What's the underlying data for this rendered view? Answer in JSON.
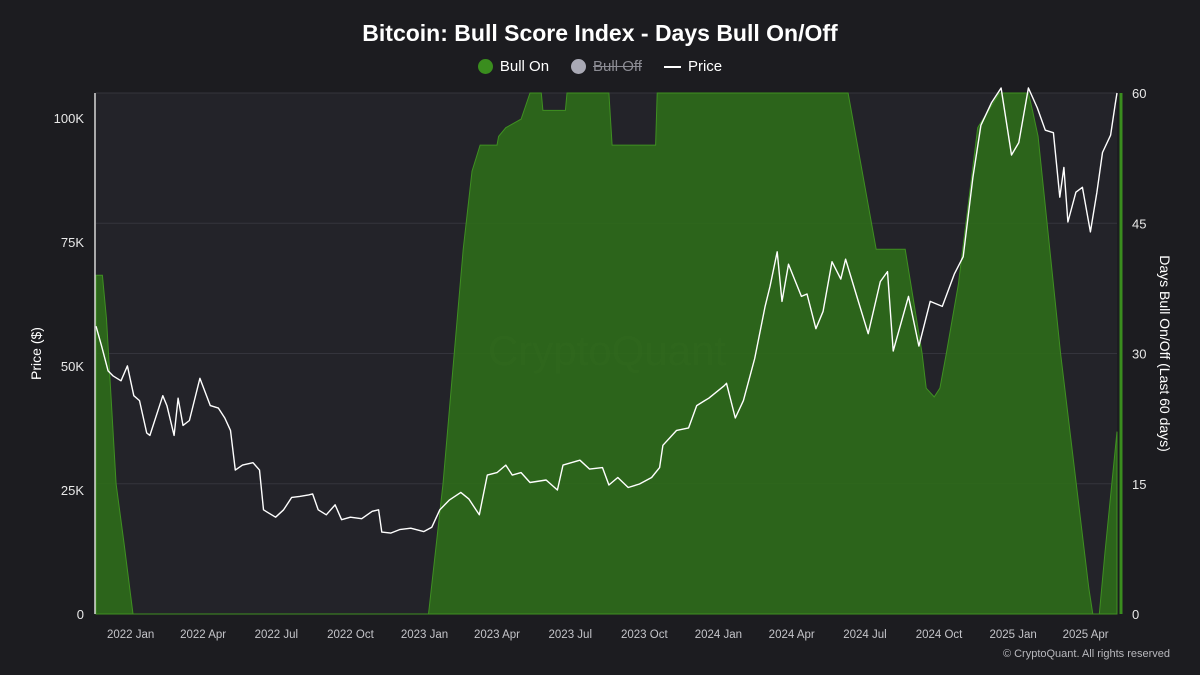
{
  "chart_data": {
    "type": "area+line",
    "title": "Bitcoin: Bull Score Index - Days Bull On/Off",
    "legend": [
      {
        "name": "Bull On",
        "color": "#3a8d1e",
        "active": true
      },
      {
        "name": "Bull Off",
        "color": "#a9a9b5",
        "active": false
      },
      {
        "name": "Price",
        "color": "#ffffff",
        "active": true
      }
    ],
    "y_left": {
      "label": "Price ($)",
      "ticks": [
        0,
        25000,
        50000,
        75000,
        100000
      ],
      "tick_labels": [
        "0",
        "25K",
        "50K",
        "75K",
        "100K"
      ],
      "range": [
        0,
        105000
      ]
    },
    "y_right": {
      "label": "Days Bull On/Off (Last 60 days)",
      "ticks": [
        0,
        15,
        30,
        45,
        60
      ],
      "tick_labels": [
        "0",
        "15",
        "30",
        "45",
        "60"
      ],
      "range": [
        0,
        60
      ]
    },
    "x_axis": {
      "range": [
        "2021-11-19",
        "2025-05-10"
      ],
      "ticks": [
        "2022-01-01",
        "2022-04-01",
        "2022-07-01",
        "2022-10-01",
        "2023-01-01",
        "2023-04-01",
        "2023-07-01",
        "2023-10-01",
        "2024-01-01",
        "2024-04-01",
        "2024-07-01",
        "2024-10-01",
        "2025-01-01",
        "2025-04-01"
      ],
      "tick_labels": [
        "2022 Jan",
        "2022 Apr",
        "2022 Jul",
        "2022 Oct",
        "2023 Jan",
        "2023 Apr",
        "2023 Jul",
        "2023 Oct",
        "2024 Jan",
        "2024 Apr",
        "2024 Jul",
        "2024 Oct",
        "2025 Jan",
        "2025 Apr"
      ]
    },
    "series": [
      {
        "name": "Bull On",
        "axis": "right",
        "type": "area",
        "points": [
          [
            "2021-11-19",
            39
          ],
          [
            "2021-11-27",
            39
          ],
          [
            "2021-12-02",
            34
          ],
          [
            "2021-12-14",
            15
          ],
          [
            "2021-12-24",
            8
          ],
          [
            "2022-01-04",
            0
          ],
          [
            "2023-01-06",
            0
          ],
          [
            "2023-01-24",
            15
          ],
          [
            "2023-02-18",
            42
          ],
          [
            "2023-03-01",
            51
          ],
          [
            "2023-03-11",
            54
          ],
          [
            "2023-04-01",
            54
          ],
          [
            "2023-04-03",
            55
          ],
          [
            "2023-04-12",
            56
          ],
          [
            "2023-05-01",
            57
          ],
          [
            "2023-05-12",
            60
          ],
          [
            "2023-05-26",
            60
          ],
          [
            "2023-05-28",
            58
          ],
          [
            "2023-06-25",
            58
          ],
          [
            "2023-06-27",
            60
          ],
          [
            "2023-08-18",
            60
          ],
          [
            "2023-08-22",
            54
          ],
          [
            "2023-10-15",
            54
          ],
          [
            "2023-10-17",
            60
          ],
          [
            "2024-06-10",
            60
          ],
          [
            "2024-07-15",
            42
          ],
          [
            "2024-07-18",
            42
          ],
          [
            "2024-08-20",
            42
          ],
          [
            "2024-09-10",
            30
          ],
          [
            "2024-09-15",
            26
          ],
          [
            "2024-09-25",
            25
          ],
          [
            "2024-10-02",
            26
          ],
          [
            "2024-10-10",
            30
          ],
          [
            "2024-10-25",
            38
          ],
          [
            "2024-11-18",
            56
          ],
          [
            "2024-12-15",
            60
          ],
          [
            "2025-01-20",
            60
          ],
          [
            "2025-01-25",
            58
          ],
          [
            "2025-02-01",
            55
          ],
          [
            "2025-03-01",
            30
          ],
          [
            "2025-04-05",
            3
          ],
          [
            "2025-04-10",
            0
          ],
          [
            "2025-04-18",
            0
          ],
          [
            "2025-04-25",
            7
          ],
          [
            "2025-05-10",
            21
          ]
        ]
      },
      {
        "name": "Price",
        "axis": "left",
        "type": "line",
        "points": [
          [
            "2021-11-19",
            58000
          ],
          [
            "2021-11-26",
            54000
          ],
          [
            "2021-12-04",
            49000
          ],
          [
            "2021-12-10",
            48000
          ],
          [
            "2021-12-20",
            47000
          ],
          [
            "2021-12-28",
            50000
          ],
          [
            "2022-01-05",
            44000
          ],
          [
            "2022-01-12",
            43000
          ],
          [
            "2022-01-21",
            36500
          ],
          [
            "2022-01-25",
            36000
          ],
          [
            "2022-02-10",
            44000
          ],
          [
            "2022-02-15",
            42000
          ],
          [
            "2022-02-24",
            36000
          ],
          [
            "2022-03-01",
            43500
          ],
          [
            "2022-03-07",
            38000
          ],
          [
            "2022-03-15",
            39000
          ],
          [
            "2022-03-28",
            47500
          ],
          [
            "2022-04-10",
            42000
          ],
          [
            "2022-04-20",
            41500
          ],
          [
            "2022-04-28",
            39500
          ],
          [
            "2022-05-05",
            37000
          ],
          [
            "2022-05-11",
            29000
          ],
          [
            "2022-05-20",
            30000
          ],
          [
            "2022-06-02",
            30500
          ],
          [
            "2022-06-10",
            29000
          ],
          [
            "2022-06-15",
            21000
          ],
          [
            "2022-06-20",
            20500
          ],
          [
            "2022-06-30",
            19500
          ],
          [
            "2022-07-10",
            21000
          ],
          [
            "2022-07-20",
            23500
          ],
          [
            "2022-07-30",
            23700
          ],
          [
            "2022-08-10",
            24000
          ],
          [
            "2022-08-15",
            24200
          ],
          [
            "2022-08-22",
            21000
          ],
          [
            "2022-09-01",
            20000
          ],
          [
            "2022-09-12",
            22000
          ],
          [
            "2022-09-20",
            19000
          ],
          [
            "2022-10-01",
            19500
          ],
          [
            "2022-10-15",
            19200
          ],
          [
            "2022-10-28",
            20700
          ],
          [
            "2022-11-05",
            21000
          ],
          [
            "2022-11-09",
            16500
          ],
          [
            "2022-11-20",
            16300
          ],
          [
            "2022-12-01",
            17000
          ],
          [
            "2022-12-15",
            17300
          ],
          [
            "2022-12-31",
            16600
          ],
          [
            "2023-01-10",
            17500
          ],
          [
            "2023-01-20",
            21000
          ],
          [
            "2023-02-01",
            23000
          ],
          [
            "2023-02-15",
            24500
          ],
          [
            "2023-02-25",
            23200
          ],
          [
            "2023-03-10",
            20000
          ],
          [
            "2023-03-20",
            28000
          ],
          [
            "2023-04-01",
            28500
          ],
          [
            "2023-04-12",
            30000
          ],
          [
            "2023-04-20",
            28000
          ],
          [
            "2023-05-01",
            28500
          ],
          [
            "2023-05-12",
            26500
          ],
          [
            "2023-06-01",
            27000
          ],
          [
            "2023-06-15",
            25000
          ],
          [
            "2023-06-22",
            30000
          ],
          [
            "2023-07-13",
            31000
          ],
          [
            "2023-07-25",
            29200
          ],
          [
            "2023-08-10",
            29500
          ],
          [
            "2023-08-18",
            26000
          ],
          [
            "2023-08-29",
            27500
          ],
          [
            "2023-09-11",
            25500
          ],
          [
            "2023-09-25",
            26200
          ],
          [
            "2023-10-10",
            27500
          ],
          [
            "2023-10-20",
            29500
          ],
          [
            "2023-10-24",
            34000
          ],
          [
            "2023-11-10",
            37000
          ],
          [
            "2023-11-25",
            37500
          ],
          [
            "2023-12-05",
            42000
          ],
          [
            "2023-12-15",
            43000
          ],
          [
            "2023-12-20",
            43500
          ],
          [
            "2024-01-08",
            46000
          ],
          [
            "2024-01-11",
            46500
          ],
          [
            "2024-01-22",
            39500
          ],
          [
            "2024-02-01",
            43000
          ],
          [
            "2024-02-15",
            51500
          ],
          [
            "2024-02-28",
            62000
          ],
          [
            "2024-03-05",
            66000
          ],
          [
            "2024-03-14",
            73000
          ],
          [
            "2024-03-20",
            63000
          ],
          [
            "2024-03-28",
            70500
          ],
          [
            "2024-04-13",
            64000
          ],
          [
            "2024-04-20",
            64500
          ],
          [
            "2024-05-01",
            57500
          ],
          [
            "2024-05-10",
            61000
          ],
          [
            "2024-05-21",
            71000
          ],
          [
            "2024-06-01",
            67500
          ],
          [
            "2024-06-07",
            71500
          ],
          [
            "2024-06-20",
            64500
          ],
          [
            "2024-07-05",
            56500
          ],
          [
            "2024-07-20",
            67000
          ],
          [
            "2024-07-29",
            69000
          ],
          [
            "2024-08-05",
            53000
          ],
          [
            "2024-08-24",
            64000
          ],
          [
            "2024-09-06",
            54000
          ],
          [
            "2024-09-20",
            63000
          ],
          [
            "2024-10-05",
            62000
          ],
          [
            "2024-10-20",
            68500
          ],
          [
            "2024-10-31",
            72000
          ],
          [
            "2024-11-12",
            88000
          ],
          [
            "2024-11-22",
            98500
          ],
          [
            "2024-12-05",
            103000
          ],
          [
            "2024-12-17",
            106000
          ],
          [
            "2024-12-30",
            92500
          ],
          [
            "2025-01-08",
            95000
          ],
          [
            "2025-01-20",
            106000
          ],
          [
            "2025-01-31",
            102000
          ],
          [
            "2025-02-10",
            97500
          ],
          [
            "2025-02-20",
            97000
          ],
          [
            "2025-02-28",
            84000
          ],
          [
            "2025-03-05",
            90000
          ],
          [
            "2025-03-10",
            79000
          ],
          [
            "2025-03-20",
            85000
          ],
          [
            "2025-03-28",
            86000
          ],
          [
            "2025-04-07",
            77000
          ],
          [
            "2025-04-15",
            85000
          ],
          [
            "2025-04-22",
            93000
          ],
          [
            "2025-05-02",
            96500
          ],
          [
            "2025-05-08",
            103000
          ],
          [
            "2025-05-10",
            105000
          ]
        ]
      }
    ]
  },
  "watermark": "CryptoQuant",
  "copyright": "© CryptoQuant. All rights reserved"
}
